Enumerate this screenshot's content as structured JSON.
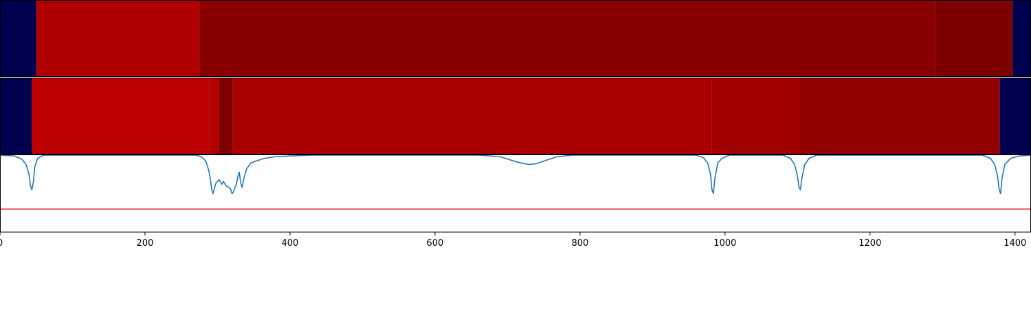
{
  "chart_data": [
    {
      "type": "heatmap",
      "xlim": [
        0,
        1422
      ],
      "segments": [
        {
          "x0": 0,
          "x1": 50,
          "color": "#000050"
        },
        {
          "x0": 50,
          "x1": 275,
          "color": "#b00000"
        },
        {
          "x0": 275,
          "x1": 1290,
          "color": "#8a0000"
        },
        {
          "x0": 1290,
          "x1": 1397,
          "color": "#7d0000"
        },
        {
          "x0": 1397,
          "x1": 1422,
          "color": "#000050"
        }
      ]
    },
    {
      "type": "heatmap",
      "xlim": [
        0,
        1422
      ],
      "segments": [
        {
          "x0": 0,
          "x1": 44,
          "color": "#000050"
        },
        {
          "x0": 44,
          "x1": 289,
          "color": "#bd0000"
        },
        {
          "x0": 289,
          "x1": 302,
          "color": "#b00000"
        },
        {
          "x0": 302,
          "x1": 321,
          "color": "#800000"
        },
        {
          "x0": 321,
          "x1": 982,
          "color": "#ab0000"
        },
        {
          "x0": 982,
          "x1": 1103,
          "color": "#a00000"
        },
        {
          "x0": 1103,
          "x1": 1379,
          "color": "#920000"
        },
        {
          "x0": 1379,
          "x1": 1422,
          "color": "#000050"
        }
      ]
    },
    {
      "type": "line",
      "xlim": [
        0,
        1422
      ],
      "ylim": [
        -1.0,
        0.0
      ],
      "xticks": [
        0,
        200,
        400,
        600,
        800,
        1000,
        1200,
        1400
      ],
      "series": [
        {
          "color": "#1f77b4",
          "points": [
            [
              0,
              0
            ],
            [
              20,
              -0.01
            ],
            [
              30,
              -0.05
            ],
            [
              36,
              -0.12
            ],
            [
              40,
              -0.25
            ],
            [
              42,
              -0.4
            ],
            [
              44,
              -0.45
            ],
            [
              46,
              -0.35
            ],
            [
              48,
              -0.15
            ],
            [
              52,
              -0.04
            ],
            [
              60,
              0
            ],
            [
              270,
              0
            ],
            [
              278,
              -0.02
            ],
            [
              284,
              -0.08
            ],
            [
              288,
              -0.2
            ],
            [
              290,
              -0.3
            ],
            [
              292,
              -0.45
            ],
            [
              294,
              -0.5
            ],
            [
              296,
              -0.42
            ],
            [
              298,
              -0.36
            ],
            [
              302,
              -0.32
            ],
            [
              306,
              -0.38
            ],
            [
              308,
              -0.34
            ],
            [
              312,
              -0.4
            ],
            [
              316,
              -0.42
            ],
            [
              318,
              -0.44
            ],
            [
              320,
              -0.5
            ],
            [
              322,
              -0.48
            ],
            [
              324,
              -0.42
            ],
            [
              326,
              -0.38
            ],
            [
              328,
              -0.28
            ],
            [
              330,
              -0.22
            ],
            [
              332,
              -0.36
            ],
            [
              334,
              -0.42
            ],
            [
              336,
              -0.32
            ],
            [
              340,
              -0.18
            ],
            [
              346,
              -0.1
            ],
            [
              355,
              -0.07
            ],
            [
              365,
              -0.04
            ],
            [
              380,
              -0.02
            ],
            [
              400,
              -0.01
            ],
            [
              430,
              0
            ],
            [
              660,
              0
            ],
            [
              690,
              -0.02
            ],
            [
              710,
              -0.08
            ],
            [
              722,
              -0.11
            ],
            [
              730,
              -0.12
            ],
            [
              740,
              -0.11
            ],
            [
              752,
              -0.07
            ],
            [
              768,
              -0.02
            ],
            [
              790,
              0
            ],
            [
              960,
              0
            ],
            [
              970,
              -0.03
            ],
            [
              976,
              -0.1
            ],
            [
              980,
              -0.25
            ],
            [
              982,
              -0.45
            ],
            [
              984,
              -0.5
            ],
            [
              986,
              -0.3
            ],
            [
              990,
              -0.1
            ],
            [
              996,
              -0.04
            ],
            [
              1006,
              0
            ],
            [
              1080,
              0
            ],
            [
              1090,
              -0.04
            ],
            [
              1096,
              -0.12
            ],
            [
              1100,
              -0.28
            ],
            [
              1102,
              -0.42
            ],
            [
              1104,
              -0.45
            ],
            [
              1106,
              -0.3
            ],
            [
              1110,
              -0.12
            ],
            [
              1116,
              -0.04
            ],
            [
              1126,
              0
            ],
            [
              1355,
              0
            ],
            [
              1366,
              -0.04
            ],
            [
              1372,
              -0.12
            ],
            [
              1376,
              -0.28
            ],
            [
              1378,
              -0.44
            ],
            [
              1380,
              -0.5
            ],
            [
              1382,
              -0.3
            ],
            [
              1386,
              -0.12
            ],
            [
              1394,
              -0.04
            ],
            [
              1406,
              -0.01
            ],
            [
              1422,
              0
            ]
          ]
        },
        {
          "color": "#e8191c",
          "points": [
            [
              0,
              -0.7
            ],
            [
              1422,
              -0.7
            ]
          ]
        }
      ]
    }
  ]
}
